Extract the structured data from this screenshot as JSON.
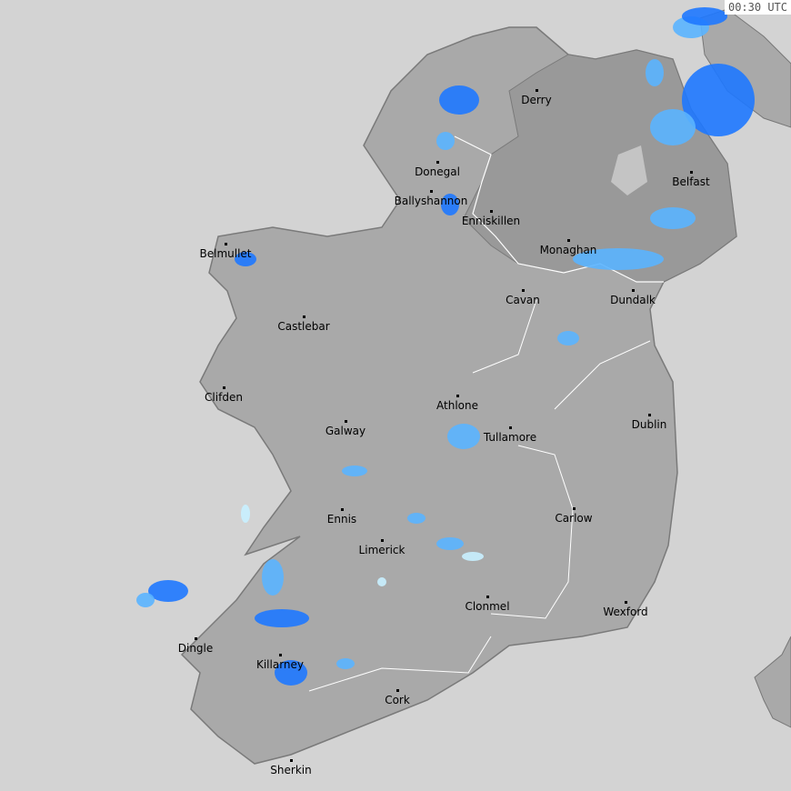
{
  "timestamp": "00:30 UTC",
  "colors": {
    "sea": "#d3d3d3",
    "republic": "#a9a9a9",
    "northern_ireland": "#999999",
    "border": "#ffffff",
    "rain_light": "#c8f0ff",
    "rain_moderate": "#5ab4ff",
    "rain_heavy": "#1e78ff"
  },
  "cities": [
    {
      "name": "Derry"
    },
    {
      "name": "Donegal"
    },
    {
      "name": "Ballyshannon"
    },
    {
      "name": "Enniskillen"
    },
    {
      "name": "Belfast"
    },
    {
      "name": "Monaghan"
    },
    {
      "name": "Belmullet"
    },
    {
      "name": "Cavan"
    },
    {
      "name": "Dundalk"
    },
    {
      "name": "Castlebar"
    },
    {
      "name": "Clifden"
    },
    {
      "name": "Athlone"
    },
    {
      "name": "Galway"
    },
    {
      "name": "Tullamore"
    },
    {
      "name": "Dublin"
    },
    {
      "name": "Ennis"
    },
    {
      "name": "Carlow"
    },
    {
      "name": "Limerick"
    },
    {
      "name": "Clonmel"
    },
    {
      "name": "Wexford"
    },
    {
      "name": "Dingle"
    },
    {
      "name": "Killarney"
    },
    {
      "name": "Cork"
    },
    {
      "name": "Sherkin"
    }
  ]
}
